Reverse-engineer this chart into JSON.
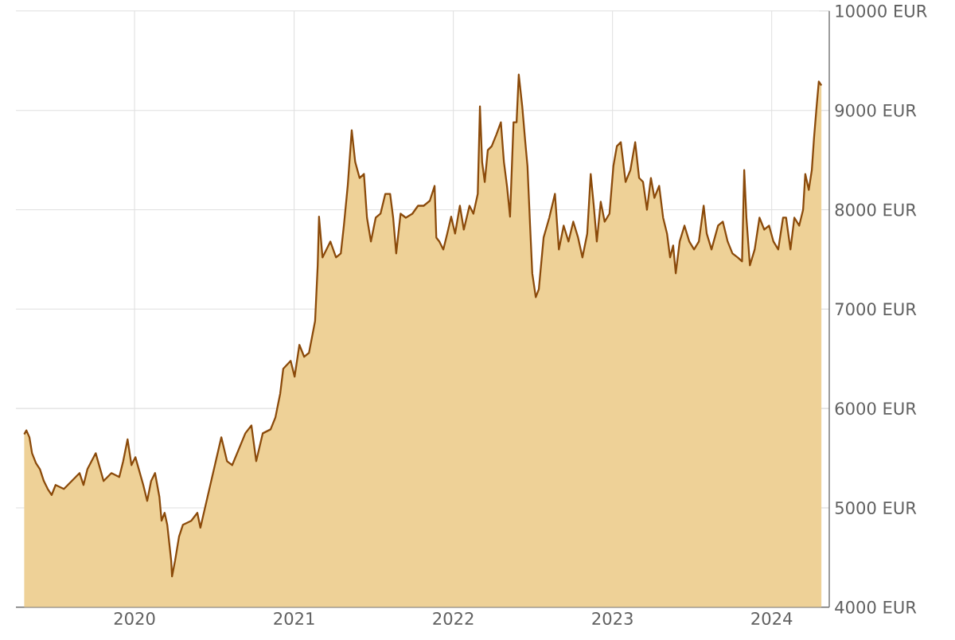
{
  "chart_data": {
    "type": "area",
    "x": [
      "2019-04-23",
      "2019-04-28",
      "2019-05-05",
      "2019-05-11",
      "2019-05-20",
      "2019-05-29",
      "2019-06-07",
      "2019-06-16",
      "2019-06-25",
      "2019-07-04",
      "2019-07-23",
      "2019-08-10",
      "2019-08-28",
      "2019-09-06",
      "2019-09-15",
      "2019-10-04",
      "2019-10-22",
      "2019-11-09",
      "2019-11-27",
      "2019-12-06",
      "2019-12-16",
      "2019-12-25",
      "2020-01-03",
      "2020-01-21",
      "2020-01-30",
      "2020-02-08",
      "2020-02-17",
      "2020-02-27",
      "2020-03-03",
      "2020-03-10",
      "2020-03-16",
      "2020-03-25",
      "2020-03-27",
      "2020-04-03",
      "2020-04-12",
      "2020-04-21",
      "2020-05-10",
      "2020-05-24",
      "2020-05-31",
      "2020-07-18",
      "2020-07-31",
      "2020-08-12",
      "2020-08-27",
      "2020-09-11",
      "2020-09-25",
      "2020-10-06",
      "2020-10-21",
      "2020-11-08",
      "2020-11-19",
      "2020-11-30",
      "2020-12-07",
      "2020-12-24",
      "2021-01-02",
      "2021-01-13",
      "2021-01-24",
      "2021-02-04",
      "2021-02-11",
      "2021-02-18",
      "2021-02-24",
      "2021-02-27",
      "2021-03-07",
      "2021-03-16",
      "2021-03-25",
      "2021-04-07",
      "2021-04-18",
      "2021-04-25",
      "2021-05-04",
      "2021-05-13",
      "2021-05-21",
      "2021-05-31",
      "2021-06-10",
      "2021-06-17",
      "2021-06-26",
      "2021-07-07",
      "2021-07-18",
      "2021-07-29",
      "2021-08-09",
      "2021-08-16",
      "2021-08-23",
      "2021-09-02",
      "2021-09-14",
      "2021-09-29",
      "2021-10-12",
      "2021-10-25",
      "2021-11-08",
      "2021-11-19",
      "2021-11-23",
      "2021-11-30",
      "2021-12-09",
      "2021-12-18",
      "2021-12-27",
      "2022-01-05",
      "2022-01-16",
      "2022-01-25",
      "2022-02-07",
      "2022-02-16",
      "2022-02-26",
      "2022-03-03",
      "2022-03-08",
      "2022-03-14",
      "2022-03-21",
      "2022-03-30",
      "2022-04-10",
      "2022-04-20",
      "2022-04-27",
      "2022-05-04",
      "2022-05-11",
      "2022-05-19",
      "2022-05-26",
      "2022-05-31",
      "2022-06-08",
      "2022-06-15",
      "2022-06-20",
      "2022-06-26",
      "2022-07-01",
      "2022-07-09",
      "2022-07-16",
      "2022-07-27",
      "2022-08-09",
      "2022-08-22",
      "2022-08-31",
      "2022-09-11",
      "2022-09-22",
      "2022-10-03",
      "2022-10-14",
      "2022-10-24",
      "2022-11-04",
      "2022-11-12",
      "2022-11-19",
      "2022-11-26",
      "2022-12-05",
      "2022-12-14",
      "2022-12-25",
      "2023-01-03",
      "2023-01-11",
      "2023-01-20",
      "2023-01-31",
      "2023-02-11",
      "2023-02-22",
      "2023-03-03",
      "2023-03-12",
      "2023-03-21",
      "2023-03-30",
      "2023-04-07",
      "2023-04-18",
      "2023-04-27",
      "2023-05-06",
      "2023-05-13",
      "2023-05-20",
      "2023-05-26",
      "2023-06-04",
      "2023-06-15",
      "2023-06-26",
      "2023-07-07",
      "2023-07-18",
      "2023-07-29",
      "2023-08-05",
      "2023-08-16",
      "2023-08-31",
      "2023-09-11",
      "2023-09-22",
      "2023-10-03",
      "2023-10-15",
      "2023-10-25",
      "2023-10-30",
      "2023-11-04",
      "2023-11-12",
      "2023-11-23",
      "2023-12-04",
      "2023-12-15",
      "2023-12-26",
      "2024-01-05",
      "2024-01-16",
      "2024-01-27",
      "2024-02-03",
      "2024-02-13",
      "2024-02-22",
      "2024-03-04",
      "2024-03-13",
      "2024-03-18",
      "2024-03-26",
      "2024-04-02",
      "2024-04-07",
      "2024-04-13",
      "2024-04-18",
      "2024-04-24"
    ],
    "series": [
      {
        "color": "#8b4a0a",
        "values": [
          5740,
          5780,
          5710,
          5550,
          5450,
          5390,
          5270,
          5190,
          5130,
          5230,
          5190,
          5270,
          5350,
          5230,
          5390,
          5550,
          5270,
          5350,
          5310,
          5470,
          5690,
          5430,
          5510,
          5230,
          5070,
          5270,
          5350,
          5110,
          4870,
          4950,
          4830,
          4470,
          4310,
          4470,
          4710,
          4830,
          4870,
          4950,
          4800,
          5710,
          5470,
          5430,
          5590,
          5750,
          5830,
          5470,
          5750,
          5790,
          5910,
          6150,
          6400,
          6480,
          6320,
          6640,
          6520,
          6560,
          6720,
          6880,
          7440,
          7930,
          7520,
          7600,
          7680,
          7520,
          7560,
          7840,
          8250,
          8800,
          8480,
          8320,
          8360,
          7920,
          7680,
          7920,
          7960,
          8160,
          8160,
          7920,
          7560,
          7960,
          7920,
          7960,
          8040,
          8040,
          8090,
          8240,
          7720,
          7680,
          7600,
          7760,
          7930,
          7760,
          8040,
          7800,
          8040,
          7960,
          8160,
          9040,
          8480,
          8280,
          8600,
          8640,
          8760,
          8880,
          8480,
          8240,
          7930,
          8880,
          8880,
          9360,
          9040,
          8680,
          8440,
          7840,
          7360,
          7120,
          7200,
          7720,
          7920,
          8160,
          7600,
          7840,
          7680,
          7880,
          7720,
          7520,
          7760,
          8360,
          8040,
          7680,
          8080,
          7880,
          7960,
          8440,
          8640,
          8680,
          8280,
          8400,
          8680,
          8320,
          8280,
          8000,
          8320,
          8120,
          8240,
          7920,
          7760,
          7520,
          7640,
          7360,
          7680,
          7840,
          7680,
          7600,
          7680,
          8040,
          7760,
          7600,
          7840,
          7880,
          7680,
          7560,
          7520,
          7480,
          8400,
          7920,
          7440,
          7600,
          7920,
          7800,
          7840,
          7680,
          7600,
          7920,
          7920,
          7600,
          7920,
          7840,
          8000,
          8360,
          8200,
          8400,
          8720,
          9040,
          9290,
          9250
        ]
      }
    ],
    "xlim": [
      "2019-04-04",
      "2024-05-12"
    ],
    "xticks": [
      "2020",
      "2021",
      "2022",
      "2023",
      "2024"
    ],
    "ylim": [
      4000,
      10000
    ],
    "yticks": [
      {
        "value": 4000,
        "label": "4000 EUR"
      },
      {
        "value": 5000,
        "label": "5000 EUR"
      },
      {
        "value": 6000,
        "label": "6000 EUR"
      },
      {
        "value": 7000,
        "label": "7000 EUR"
      },
      {
        "value": 8000,
        "label": "8000 EUR"
      },
      {
        "value": 9000,
        "label": "9000 EUR"
      },
      {
        "value": 10000,
        "label": "10000 EUR"
      }
    ],
    "grid": true
  }
}
